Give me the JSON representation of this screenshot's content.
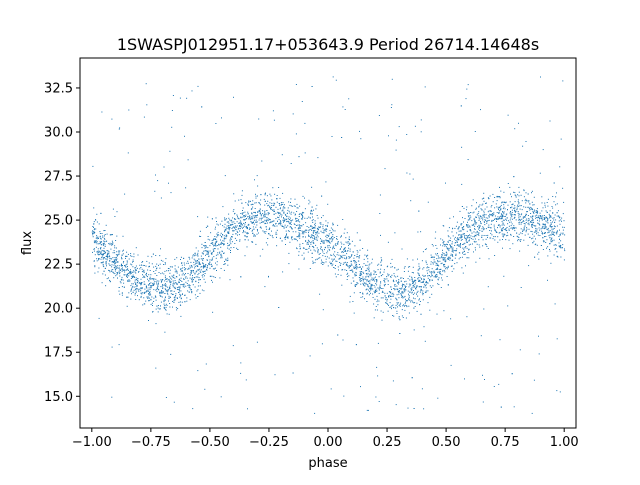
{
  "chart_data": {
    "type": "scatter",
    "title": "1SWASPJ012951.17+053643.9 Period 26714.14648s",
    "xlabel": "phase",
    "ylabel": "flux",
    "xlim": [
      -1.05,
      1.05
    ],
    "ylim": [
      13.2,
      34.2
    ],
    "xticks": [
      -1.0,
      -0.75,
      -0.5,
      -0.25,
      0.0,
      0.25,
      0.5,
      0.75,
      1.0
    ],
    "xtick_labels": [
      "−1.00",
      "−0.75",
      "−0.50",
      "−0.25",
      "0.00",
      "0.25",
      "0.50",
      "0.75",
      "1.00"
    ],
    "yticks": [
      15.0,
      17.5,
      20.0,
      22.5,
      25.0,
      27.5,
      30.0,
      32.5
    ],
    "ytick_labels": [
      "15.0",
      "17.5",
      "20.0",
      "22.5",
      "25.0",
      "27.5",
      "30.0",
      "32.5"
    ],
    "grid": false,
    "legend": "none",
    "marker_color": "#1f77b4",
    "series": [
      {
        "x": [
          -1.0,
          -0.9,
          -0.8,
          -0.7,
          -0.6,
          -0.5,
          -0.4,
          -0.3,
          -0.2,
          -0.1,
          0.0,
          0.1,
          0.2,
          0.3,
          0.4,
          0.5,
          0.6,
          0.7,
          0.8,
          0.9,
          1.0
        ],
        "y": [
          23.8,
          22.6,
          21.6,
          21.1,
          21.6,
          23.0,
          24.6,
          25.2,
          25.2,
          24.5,
          23.7,
          22.5,
          21.3,
          21.0,
          21.6,
          23.0,
          24.5,
          25.1,
          25.2,
          24.8,
          24.0
        ],
        "spread": 1.3
      }
    ]
  }
}
